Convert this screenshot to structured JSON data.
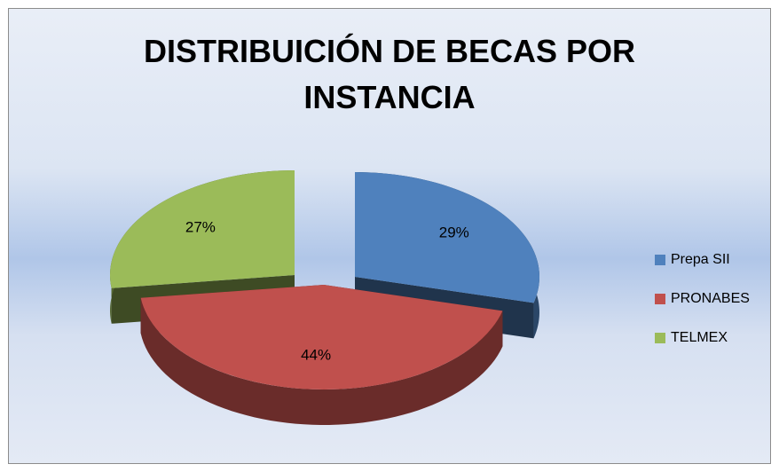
{
  "chart_data": {
    "type": "pie",
    "title": "DISTRIBUICIÓN DE BECAS POR INSTANCIA",
    "categories": [
      "Prepa SII",
      "PRONABES",
      "TELMEX"
    ],
    "values": [
      29,
      44,
      27
    ],
    "value_labels": [
      "29%",
      "44%",
      "27%"
    ],
    "colors": [
      "#4f81bd",
      "#c0504d",
      "#9bbb59"
    ],
    "legend": "right"
  }
}
